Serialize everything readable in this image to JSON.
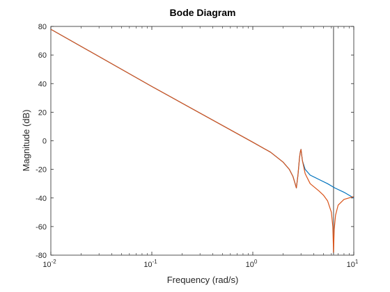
{
  "chart_data": {
    "type": "line",
    "title": "Bode Diagram",
    "xlabel": "Frequency (rad/s)",
    "ylabel": "Magnitude (dB)",
    "x_scale": "log",
    "xlim": [
      0.01,
      10
    ],
    "ylim": [
      -80,
      80
    ],
    "x_ticks": [
      {
        "base": "10",
        "exp": "-2",
        "value": 0.01
      },
      {
        "base": "10",
        "exp": "-1",
        "value": 0.1
      },
      {
        "base": "10",
        "exp": "0",
        "value": 1
      },
      {
        "base": "10",
        "exp": "1",
        "value": 10
      }
    ],
    "y_ticks": [
      "80",
      "60",
      "40",
      "20",
      "0",
      "-20",
      "-40",
      "-60",
      "-80"
    ],
    "grid": false,
    "series": [
      {
        "color": "#0072BD",
        "x": [
          0.01,
          0.1,
          1,
          1.5,
          2.0,
          2.3,
          2.5,
          2.6,
          2.7,
          2.8,
          2.9,
          2.95,
          3.0,
          3.05,
          3.1,
          3.3,
          3.7,
          4.5,
          5.5,
          6.5,
          8.0,
          10
        ],
        "y": [
          78,
          38,
          -1,
          -8,
          -15,
          -20,
          -25,
          -29,
          -33,
          -24,
          -12,
          -8,
          -6,
          -10,
          -14,
          -20,
          -24,
          -27,
          -30,
          -33,
          -36,
          -40
        ]
      },
      {
        "color": "#D95319",
        "x": [
          0.01,
          0.1,
          1,
          1.5,
          2.0,
          2.3,
          2.5,
          2.6,
          2.7,
          2.8,
          2.9,
          2.95,
          3.0,
          3.05,
          3.1,
          3.3,
          3.7,
          4.5,
          5.0,
          5.5,
          6.0,
          6.2,
          6.3,
          6.4,
          6.6,
          7.0,
          8.0,
          10
        ],
        "y": [
          78,
          38,
          -1,
          -8,
          -15,
          -20,
          -25,
          -29,
          -33,
          -24,
          -12,
          -8,
          -6,
          -10,
          -14,
          -23,
          -30,
          -35,
          -38,
          -42,
          -50,
          -60,
          -78,
          -62,
          -52,
          -45,
          -41,
          -39
        ]
      }
    ],
    "vertical_line": {
      "x": 6.3,
      "color": "#808080"
    }
  }
}
